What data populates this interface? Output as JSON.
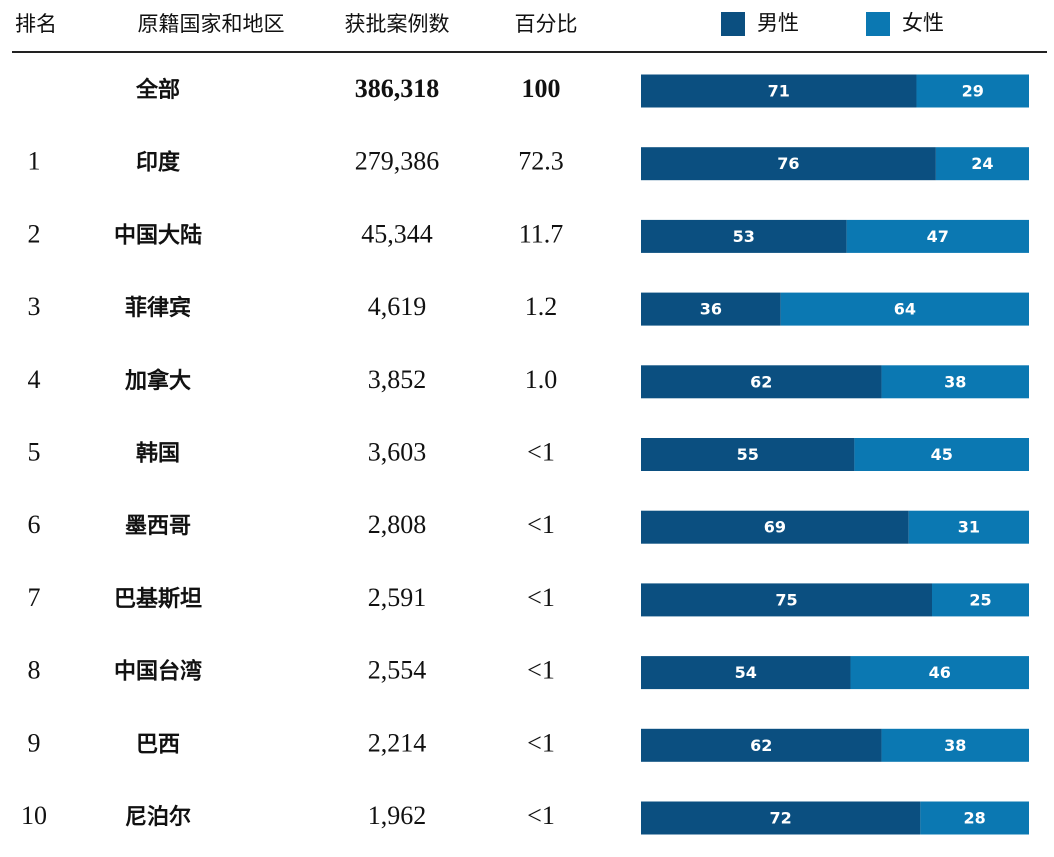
{
  "header": {
    "columns": [
      "排名",
      "原籍国家和地区",
      "获批案例数",
      "百分比"
    ],
    "legend": [
      {
        "name": "男性",
        "color": "#0b4f80"
      },
      {
        "name": "女性",
        "color": "#0b78b2"
      }
    ]
  },
  "rows": [
    {
      "rank": null,
      "region": "全部",
      "count": "386,318",
      "percent": "100",
      "male": 71,
      "female": 29,
      "bold": true
    },
    {
      "rank": "1",
      "region": "印度",
      "count": "279,386",
      "percent": "72.3",
      "male": 76,
      "female": 24
    },
    {
      "rank": "2",
      "region": "中国大陆",
      "count": "45,344",
      "percent": "11.7",
      "male": 53,
      "female": 47
    },
    {
      "rank": "3",
      "region": "菲律宾",
      "count": "4,619",
      "percent": "1.2",
      "male": 36,
      "female": 64
    },
    {
      "rank": "4",
      "region": "加拿大",
      "count": "3,852",
      "percent": "1.0",
      "male": 62,
      "female": 38
    },
    {
      "rank": "5",
      "region": "韩国",
      "count": "3,603",
      "percent": "<1",
      "male": 55,
      "female": 45
    },
    {
      "rank": "6",
      "region": "墨西哥",
      "count": "2,808",
      "percent": "<1",
      "male": 69,
      "female": 31
    },
    {
      "rank": "7",
      "region": "巴基斯坦",
      "count": "2,591",
      "percent": "<1",
      "male": 75,
      "female": 25
    },
    {
      "rank": "8",
      "region": "中国台湾",
      "count": "2,554",
      "percent": "<1",
      "male": 54,
      "female": 46
    },
    {
      "rank": "9",
      "region": "巴西",
      "count": "2,214",
      "percent": "<1",
      "male": 62,
      "female": 38
    },
    {
      "rank": "10",
      "region": "尼泊尔",
      "count": "1,962",
      "percent": "<1",
      "male": 72,
      "female": 28
    }
  ]
}
